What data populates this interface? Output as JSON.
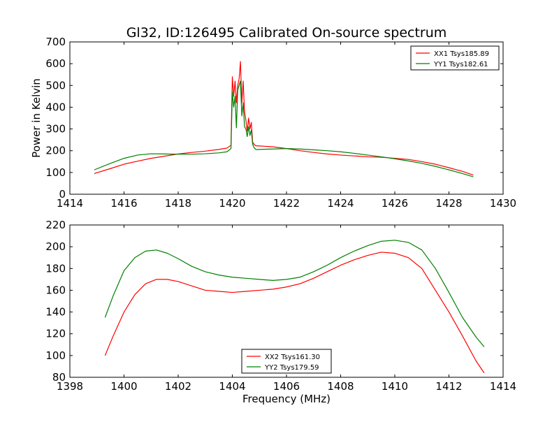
{
  "title": "Gl32, ID:126495 Calibrated On-source spectrum",
  "colors": {
    "red": "#ff0000",
    "green": "#008000",
    "axes": "#000000",
    "background": "#ffffff"
  },
  "chart_data": [
    {
      "type": "line",
      "title": "Gl32, ID:126495 Calibrated On-source spectrum",
      "xlabel": "",
      "ylabel": "Power in Kelvin",
      "xlim": [
        1414,
        1430
      ],
      "ylim": [
        0,
        700
      ],
      "xticks": [
        1414,
        1416,
        1418,
        1420,
        1422,
        1424,
        1426,
        1428,
        1430
      ],
      "yticks": [
        0,
        100,
        200,
        300,
        400,
        500,
        600,
        700
      ],
      "xtick_labels": [
        "1414",
        "1416",
        "1418",
        "1420",
        "1422",
        "1424",
        "1426",
        "1428",
        "1430"
      ],
      "ytick_labels": [
        "0",
        "100",
        "200",
        "300",
        "400",
        "500",
        "600",
        "700"
      ],
      "grid": false,
      "legend_position": "top-right",
      "series": [
        {
          "name": "XX1 Tsys185.89",
          "color": "#ff0000",
          "x": [
            1414.9,
            1415.5,
            1416,
            1416.5,
            1417,
            1417.5,
            1418,
            1418.5,
            1419,
            1419.5,
            1419.8,
            1419.95,
            1420.0,
            1420.05,
            1420.1,
            1420.15,
            1420.2,
            1420.25,
            1420.3,
            1420.35,
            1420.4,
            1420.45,
            1420.5,
            1420.55,
            1420.6,
            1420.65,
            1420.7,
            1420.75,
            1420.8,
            1420.85,
            1420.9,
            1421,
            1421.5,
            1422,
            1422.5,
            1423,
            1423.5,
            1424,
            1424.5,
            1425,
            1425.5,
            1426,
            1426.5,
            1427,
            1427.5,
            1428,
            1428.5,
            1428.9
          ],
          "values": [
            95,
            118,
            138,
            152,
            165,
            175,
            185,
            192,
            198,
            206,
            212,
            225,
            540,
            450,
            520,
            420,
            500,
            530,
            610,
            420,
            520,
            380,
            340,
            290,
            350,
            300,
            330,
            240,
            230,
            224,
            222,
            222,
            218,
            210,
            200,
            192,
            185,
            180,
            176,
            172,
            170,
            165,
            160,
            150,
            138,
            122,
            105,
            88
          ]
        },
        {
          "name": "YY1 Tsys182.61",
          "color": "#008000",
          "x": [
            1414.9,
            1415.5,
            1416,
            1416.5,
            1417,
            1417.5,
            1418,
            1418.5,
            1419,
            1419.5,
            1419.8,
            1419.95,
            1420.0,
            1420.05,
            1420.1,
            1420.15,
            1420.2,
            1420.25,
            1420.3,
            1420.35,
            1420.4,
            1420.45,
            1420.5,
            1420.55,
            1420.6,
            1420.65,
            1420.7,
            1420.75,
            1420.8,
            1420.85,
            1420.9,
            1421,
            1421.5,
            1422,
            1422.5,
            1423,
            1423.5,
            1424,
            1424.5,
            1425,
            1425.5,
            1426,
            1426.5,
            1427,
            1427.5,
            1428,
            1428.5,
            1428.9
          ],
          "values": [
            112,
            142,
            165,
            180,
            186,
            185,
            184,
            184,
            186,
            190,
            195,
            210,
            470,
            400,
            450,
            305,
            480,
            500,
            520,
            360,
            420,
            310,
            300,
            265,
            310,
            270,
            295,
            230,
            215,
            207,
            205,
            206,
            208,
            210,
            208,
            204,
            200,
            195,
            188,
            180,
            172,
            163,
            153,
            142,
            128,
            112,
            95,
            80
          ]
        }
      ]
    },
    {
      "type": "line",
      "title": "",
      "xlabel": "Frequency (MHz)",
      "ylabel": "",
      "xlim": [
        1398,
        1414
      ],
      "ylim": [
        80,
        220
      ],
      "xticks": [
        1398,
        1400,
        1402,
        1404,
        1406,
        1408,
        1410,
        1412,
        1414
      ],
      "yticks": [
        80,
        100,
        120,
        140,
        160,
        180,
        200,
        220
      ],
      "xtick_labels": [
        "1398",
        "1400",
        "1402",
        "1404",
        "1406",
        "1408",
        "1410",
        "1412",
        "1414"
      ],
      "ytick_labels": [
        "80",
        "100",
        "120",
        "140",
        "160",
        "180",
        "200",
        "220"
      ],
      "grid": false,
      "legend_position": "bottom-center",
      "series": [
        {
          "name": "XX2 Tsys161.30",
          "color": "#ff0000",
          "x": [
            1399.3,
            1399.6,
            1400,
            1400.4,
            1400.8,
            1401.2,
            1401.6,
            1402,
            1402.5,
            1403,
            1403.5,
            1404,
            1404.5,
            1405,
            1405.5,
            1406,
            1406.5,
            1407,
            1407.5,
            1408,
            1408.5,
            1409,
            1409.5,
            1410,
            1410.5,
            1411,
            1411.5,
            1412,
            1412.5,
            1413,
            1413.3
          ],
          "values": [
            100,
            118,
            140,
            156,
            166,
            170,
            170,
            168,
            164,
            160,
            159,
            158,
            159,
            160,
            161,
            163,
            166,
            171,
            177,
            183,
            188,
            192,
            195,
            194,
            190,
            180,
            160,
            140,
            118,
            95,
            84
          ]
        },
        {
          "name": "YY2 Tsys179.59",
          "color": "#008000",
          "x": [
            1399.3,
            1399.6,
            1400,
            1400.4,
            1400.8,
            1401.2,
            1401.6,
            1402,
            1402.5,
            1403,
            1403.5,
            1404,
            1404.5,
            1405,
            1405.5,
            1406,
            1406.5,
            1407,
            1407.5,
            1408,
            1408.5,
            1409,
            1409.5,
            1410,
            1410.5,
            1411,
            1411.5,
            1412,
            1412.5,
            1413,
            1413.3
          ],
          "values": [
            135,
            155,
            178,
            190,
            196,
            197,
            194,
            189,
            182,
            177,
            174,
            172,
            171,
            170,
            169,
            170,
            172,
            177,
            183,
            190,
            196,
            201,
            205,
            206,
            204,
            197,
            180,
            158,
            135,
            117,
            108
          ]
        }
      ]
    }
  ]
}
